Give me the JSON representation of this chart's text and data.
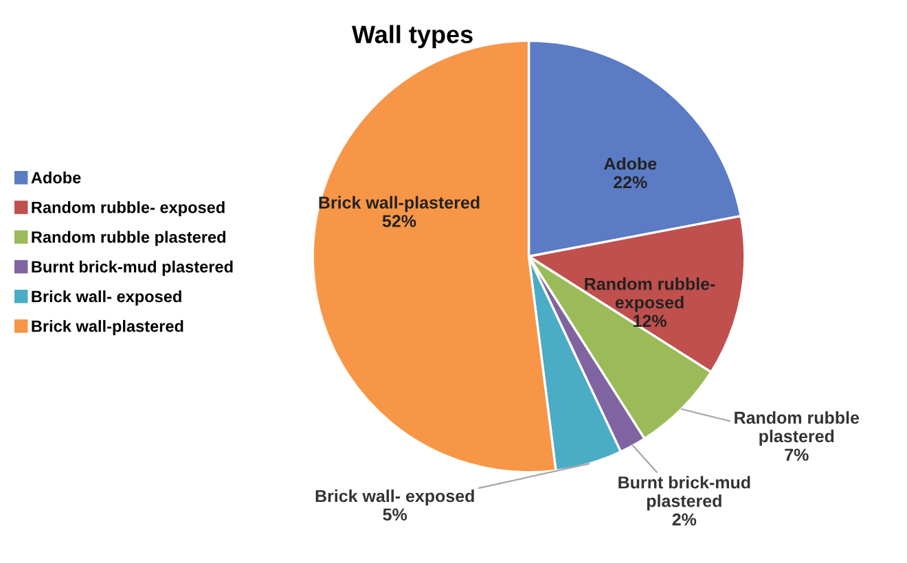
{
  "chart_data": {
    "type": "pie",
    "title": "Wall types",
    "categories": [
      "Adobe",
      "Random rubble- exposed",
      "Random rubble plastered",
      "Burnt brick-mud plastered",
      "Brick wall- exposed",
      "Brick wall-plastered"
    ],
    "values": [
      22,
      12,
      7,
      2,
      5,
      52
    ],
    "colors": [
      "#5b7cc4",
      "#c0504d",
      "#9bbb59",
      "#8064a2",
      "#4bacc6",
      "#f79646"
    ],
    "value_labels": [
      "22%",
      "12%",
      "7%",
      "2%",
      "5%",
      "52%"
    ],
    "legend": "left"
  }
}
